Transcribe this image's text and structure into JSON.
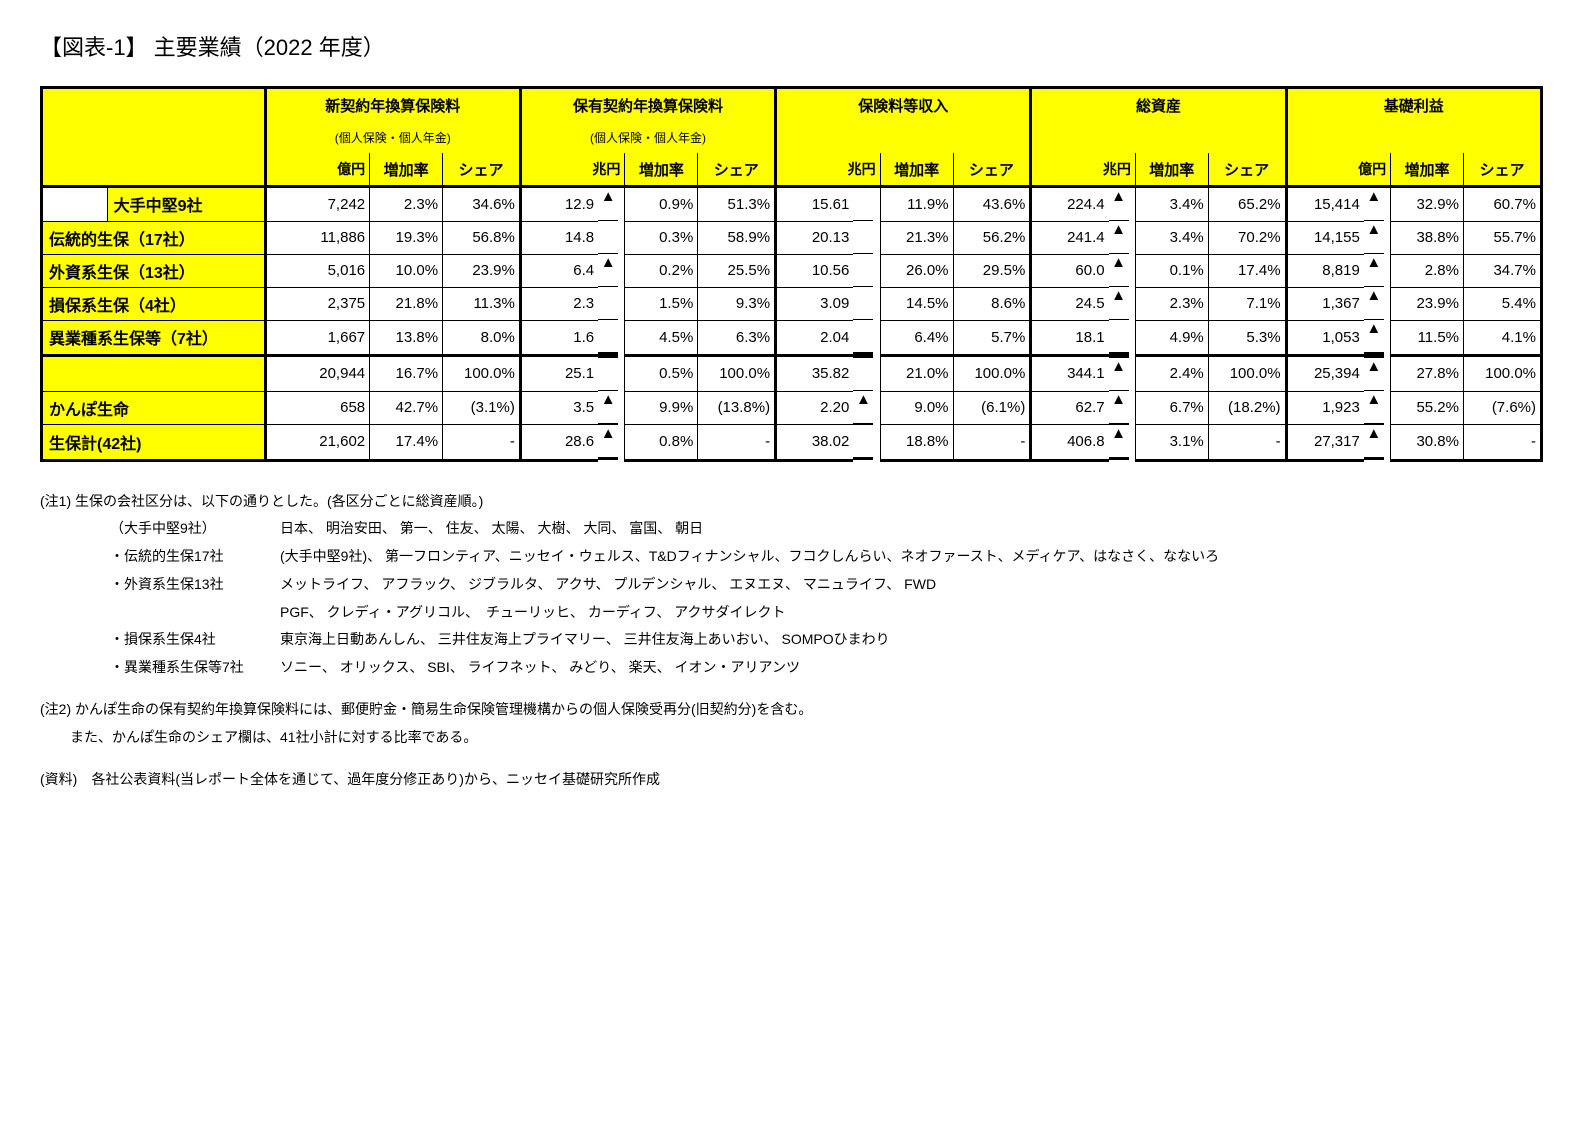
{
  "title": "【図表-1】 主要業績（2022 年度）",
  "headers": {
    "groups": [
      {
        "label": "新契約年換算保険料",
        "sub": "(個人保険・個人年金)",
        "unit": "億円"
      },
      {
        "label": "保有契約年換算保険料",
        "sub": "(個人保険・個人年金)",
        "unit": "兆円"
      },
      {
        "label": "保険料等収入",
        "sub": "",
        "unit": "兆円"
      },
      {
        "label": "総資産",
        "sub": "",
        "unit": "兆円"
      },
      {
        "label": "基礎利益",
        "sub": "",
        "unit": "億円"
      }
    ],
    "sub_cols": [
      "増加率",
      "シェア"
    ]
  },
  "rows": [
    {
      "label": "大手中堅9社",
      "indent": true,
      "v": [
        "7,242",
        "2.3%",
        "34.6%",
        "12.9",
        "▲",
        "0.9%",
        "51.3%",
        "15.61",
        "",
        "11.9%",
        "43.6%",
        "224.4",
        "▲",
        "3.4%",
        "65.2%",
        "15,414",
        "▲",
        "32.9%",
        "60.7%"
      ]
    },
    {
      "label": "伝統的生保（17社）",
      "yl": true,
      "v": [
        "11,886",
        "19.3%",
        "56.8%",
        "14.8",
        "",
        "0.3%",
        "58.9%",
        "20.13",
        "",
        "21.3%",
        "56.2%",
        "241.4",
        "▲",
        "3.4%",
        "70.2%",
        "14,155",
        "▲",
        "38.8%",
        "55.7%"
      ]
    },
    {
      "label": "外資系生保（13社）",
      "yl": true,
      "v": [
        "5,016",
        "10.0%",
        "23.9%",
        "6.4",
        "▲",
        "0.2%",
        "25.5%",
        "10.56",
        "",
        "26.0%",
        "29.5%",
        "60.0",
        "▲",
        "0.1%",
        "17.4%",
        "8,819",
        "▲",
        "2.8%",
        "34.7%"
      ]
    },
    {
      "label": "損保系生保（4社）",
      "yl": true,
      "v": [
        "2,375",
        "21.8%",
        "11.3%",
        "2.3",
        "",
        "1.5%",
        "9.3%",
        "3.09",
        "",
        "14.5%",
        "8.6%",
        "24.5",
        "▲",
        "2.3%",
        "7.1%",
        "1,367",
        "▲",
        "23.9%",
        "5.4%"
      ]
    },
    {
      "label": "異業種系生保等（7社）",
      "yl": true,
      "bottom": true,
      "v": [
        "1,667",
        "13.8%",
        "8.0%",
        "1.6",
        "",
        "4.5%",
        "6.3%",
        "2.04",
        "",
        "6.4%",
        "5.7%",
        "18.1",
        "",
        "4.9%",
        "5.3%",
        "1,053",
        "▲",
        "11.5%",
        "4.1%"
      ]
    },
    {
      "label": "",
      "yl": true,
      "subtotal": true,
      "v": [
        "20,944",
        "16.7%",
        "100.0%",
        "25.1",
        "",
        "0.5%",
        "100.0%",
        "35.82",
        "",
        "21.0%",
        "100.0%",
        "344.1",
        "▲",
        "2.4%",
        "100.0%",
        "25,394",
        "▲",
        "27.8%",
        "100.0%"
      ]
    },
    {
      "label": "かんぽ生命",
      "yl": true,
      "v": [
        "658",
        "42.7%",
        "(3.1%)",
        "3.5",
        "▲",
        "9.9%",
        "(13.8%)",
        "2.20",
        "▲",
        "9.0%",
        "(6.1%)",
        "62.7",
        "▲",
        "6.7%",
        "(18.2%)",
        "1,923",
        "▲",
        "55.2%",
        "(7.6%)"
      ]
    },
    {
      "label": "生保計(42社)",
      "yl": true,
      "total": true,
      "v": [
        "21,602",
        "17.4%",
        "-",
        "28.6",
        "▲",
        "0.8%",
        "-",
        "38.02",
        "",
        "18.8%",
        "-",
        "406.8",
        "▲",
        "3.1%",
        "-",
        "27,317",
        "▲",
        "30.8%",
        "-"
      ]
    }
  ],
  "notes": {
    "n1_lead": "(注1) 生保の会社区分は、以下の通りとした。(各区分ごとに総資産順。)",
    "breakdown": [
      {
        "k": "（大手中堅9社）",
        "v": "日本、 明治安田、 第一、 住友、 太陽、 大樹、 大同、 富国、 朝日"
      },
      {
        "k": "・伝統的生保17社",
        "v": "(大手中堅9社)、 第一フロンティア、ニッセイ・ウェルス、T&Dフィナンシャル、フコクしんらい、ネオファースト、メディケア、はなさく、なないろ"
      },
      {
        "k": "・外資系生保13社",
        "v": "メットライフ、 アフラック、 ジブラルタ、 アクサ、 プルデンシャル、 エヌエヌ、 マニュライフ、 FWD"
      },
      {
        "k": "",
        "v": "PGF、 クレディ・アグリコル、　チューリッヒ、 カーディフ、 アクサダイレクト"
      },
      {
        "k": "・損保系生保4社",
        "v": "東京海上日動あんしん、 三井住友海上プライマリー、 三井住友海上あいおい、 SOMPOひまわり"
      },
      {
        "k": "・異業種系生保等7社",
        "v": "ソニー、 オリックス、 SBI、 ライフネット、 みどり、 楽天、 イオン・アリアンツ"
      }
    ],
    "n2a": "(注2) かんぽ生命の保有契約年換算保険料には、郵便貯金・簡易生命保険管理機構からの個人保険受再分(旧契約分)を含む。",
    "n2b": "また、かんぽ生命のシェア欄は、41社小計に対する比率である。",
    "src": "(資料)　各社公表資料(当レポート全体を通じて、過年度分修正あり)から、ニッセイ基礎研究所作成"
  },
  "colors": {
    "highlight": "#ffff00",
    "text": "#000000",
    "bg": "#ffffff"
  }
}
